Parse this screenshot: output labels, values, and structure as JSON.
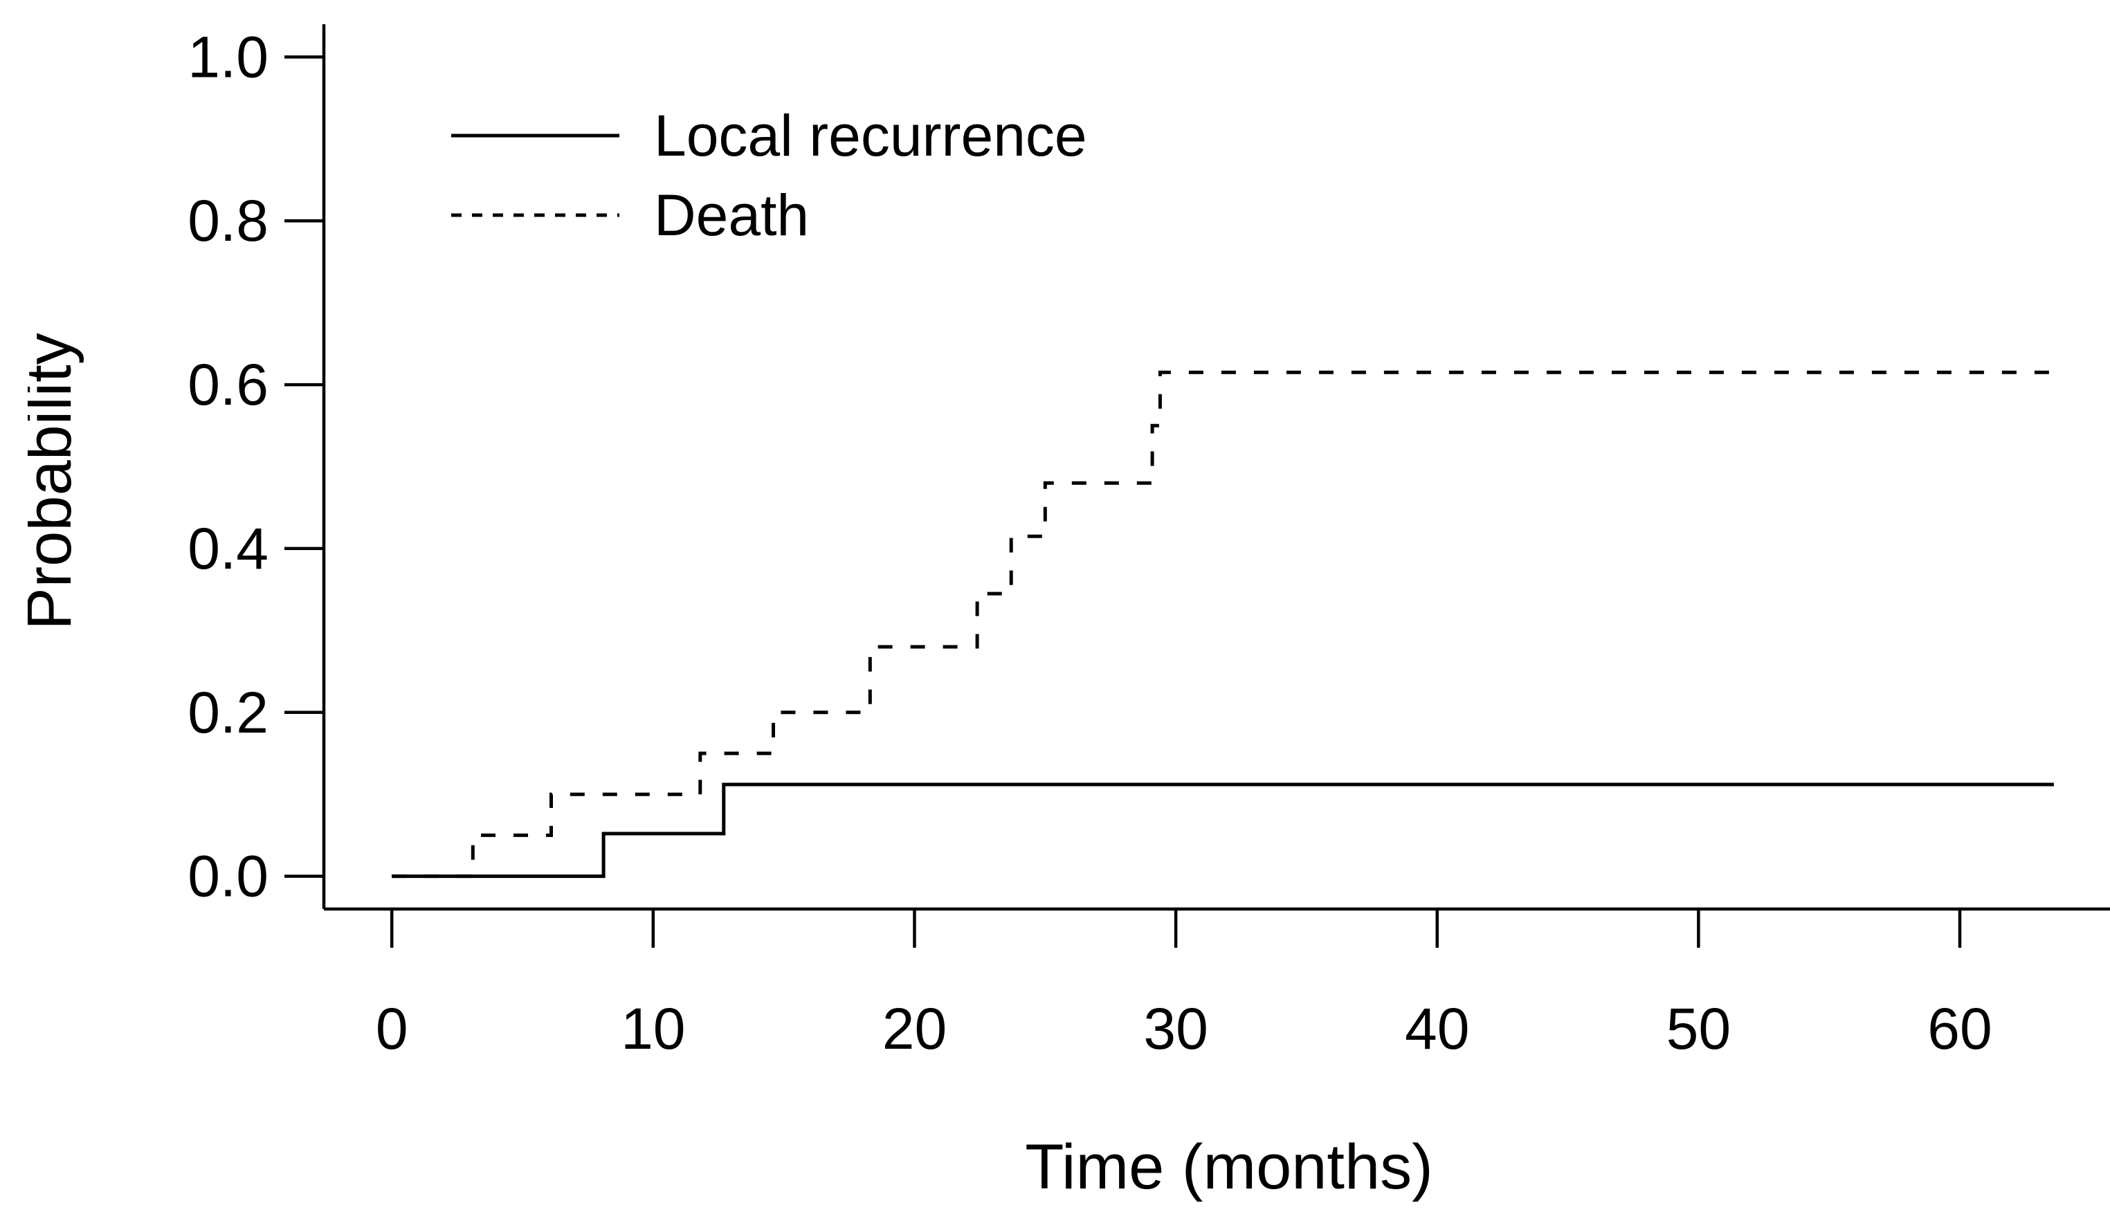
{
  "figure": {
    "background_color": "#ffffff",
    "axis_color": "#000000",
    "curve_color": "#000000"
  },
  "chart_data": {
    "type": "line",
    "subtype": "step-cumulative-incidence",
    "title": "",
    "xlabel": "Time (months)",
    "ylabel": "Probability",
    "xlim": [
      -2.6,
      67.6
    ],
    "ylim": [
      -0.04,
      1.04
    ],
    "x_ticks": [
      0,
      10,
      20,
      30,
      40,
      50,
      60
    ],
    "y_ticks": [
      "0.0",
      "0.2",
      "0.4",
      "0.6",
      "0.8",
      "1.0"
    ],
    "grid": false,
    "legend": {
      "position": "top-left",
      "entries": [
        {
          "label": "Local recurrence",
          "style": "solid"
        },
        {
          "label": "Death",
          "style": "dashed"
        }
      ]
    },
    "series": [
      {
        "name": "Local recurrence",
        "style": "solid",
        "end_time": 63.6,
        "points": [
          [
            0,
            0
          ],
          [
            8.1,
            0.052
          ],
          [
            12.7,
            0.112
          ]
        ]
      },
      {
        "name": "Death",
        "style": "dashed",
        "end_time": 63.6,
        "points": [
          [
            0,
            0
          ],
          [
            3.1,
            0.05
          ],
          [
            6.1,
            0.1
          ],
          [
            11.8,
            0.15
          ],
          [
            14.6,
            0.2
          ],
          [
            18.3,
            0.28
          ],
          [
            22.4,
            0.345
          ],
          [
            23.7,
            0.415
          ],
          [
            25.0,
            0.48
          ],
          [
            29.1,
            0.55
          ],
          [
            29.4,
            0.615
          ]
        ]
      }
    ]
  }
}
